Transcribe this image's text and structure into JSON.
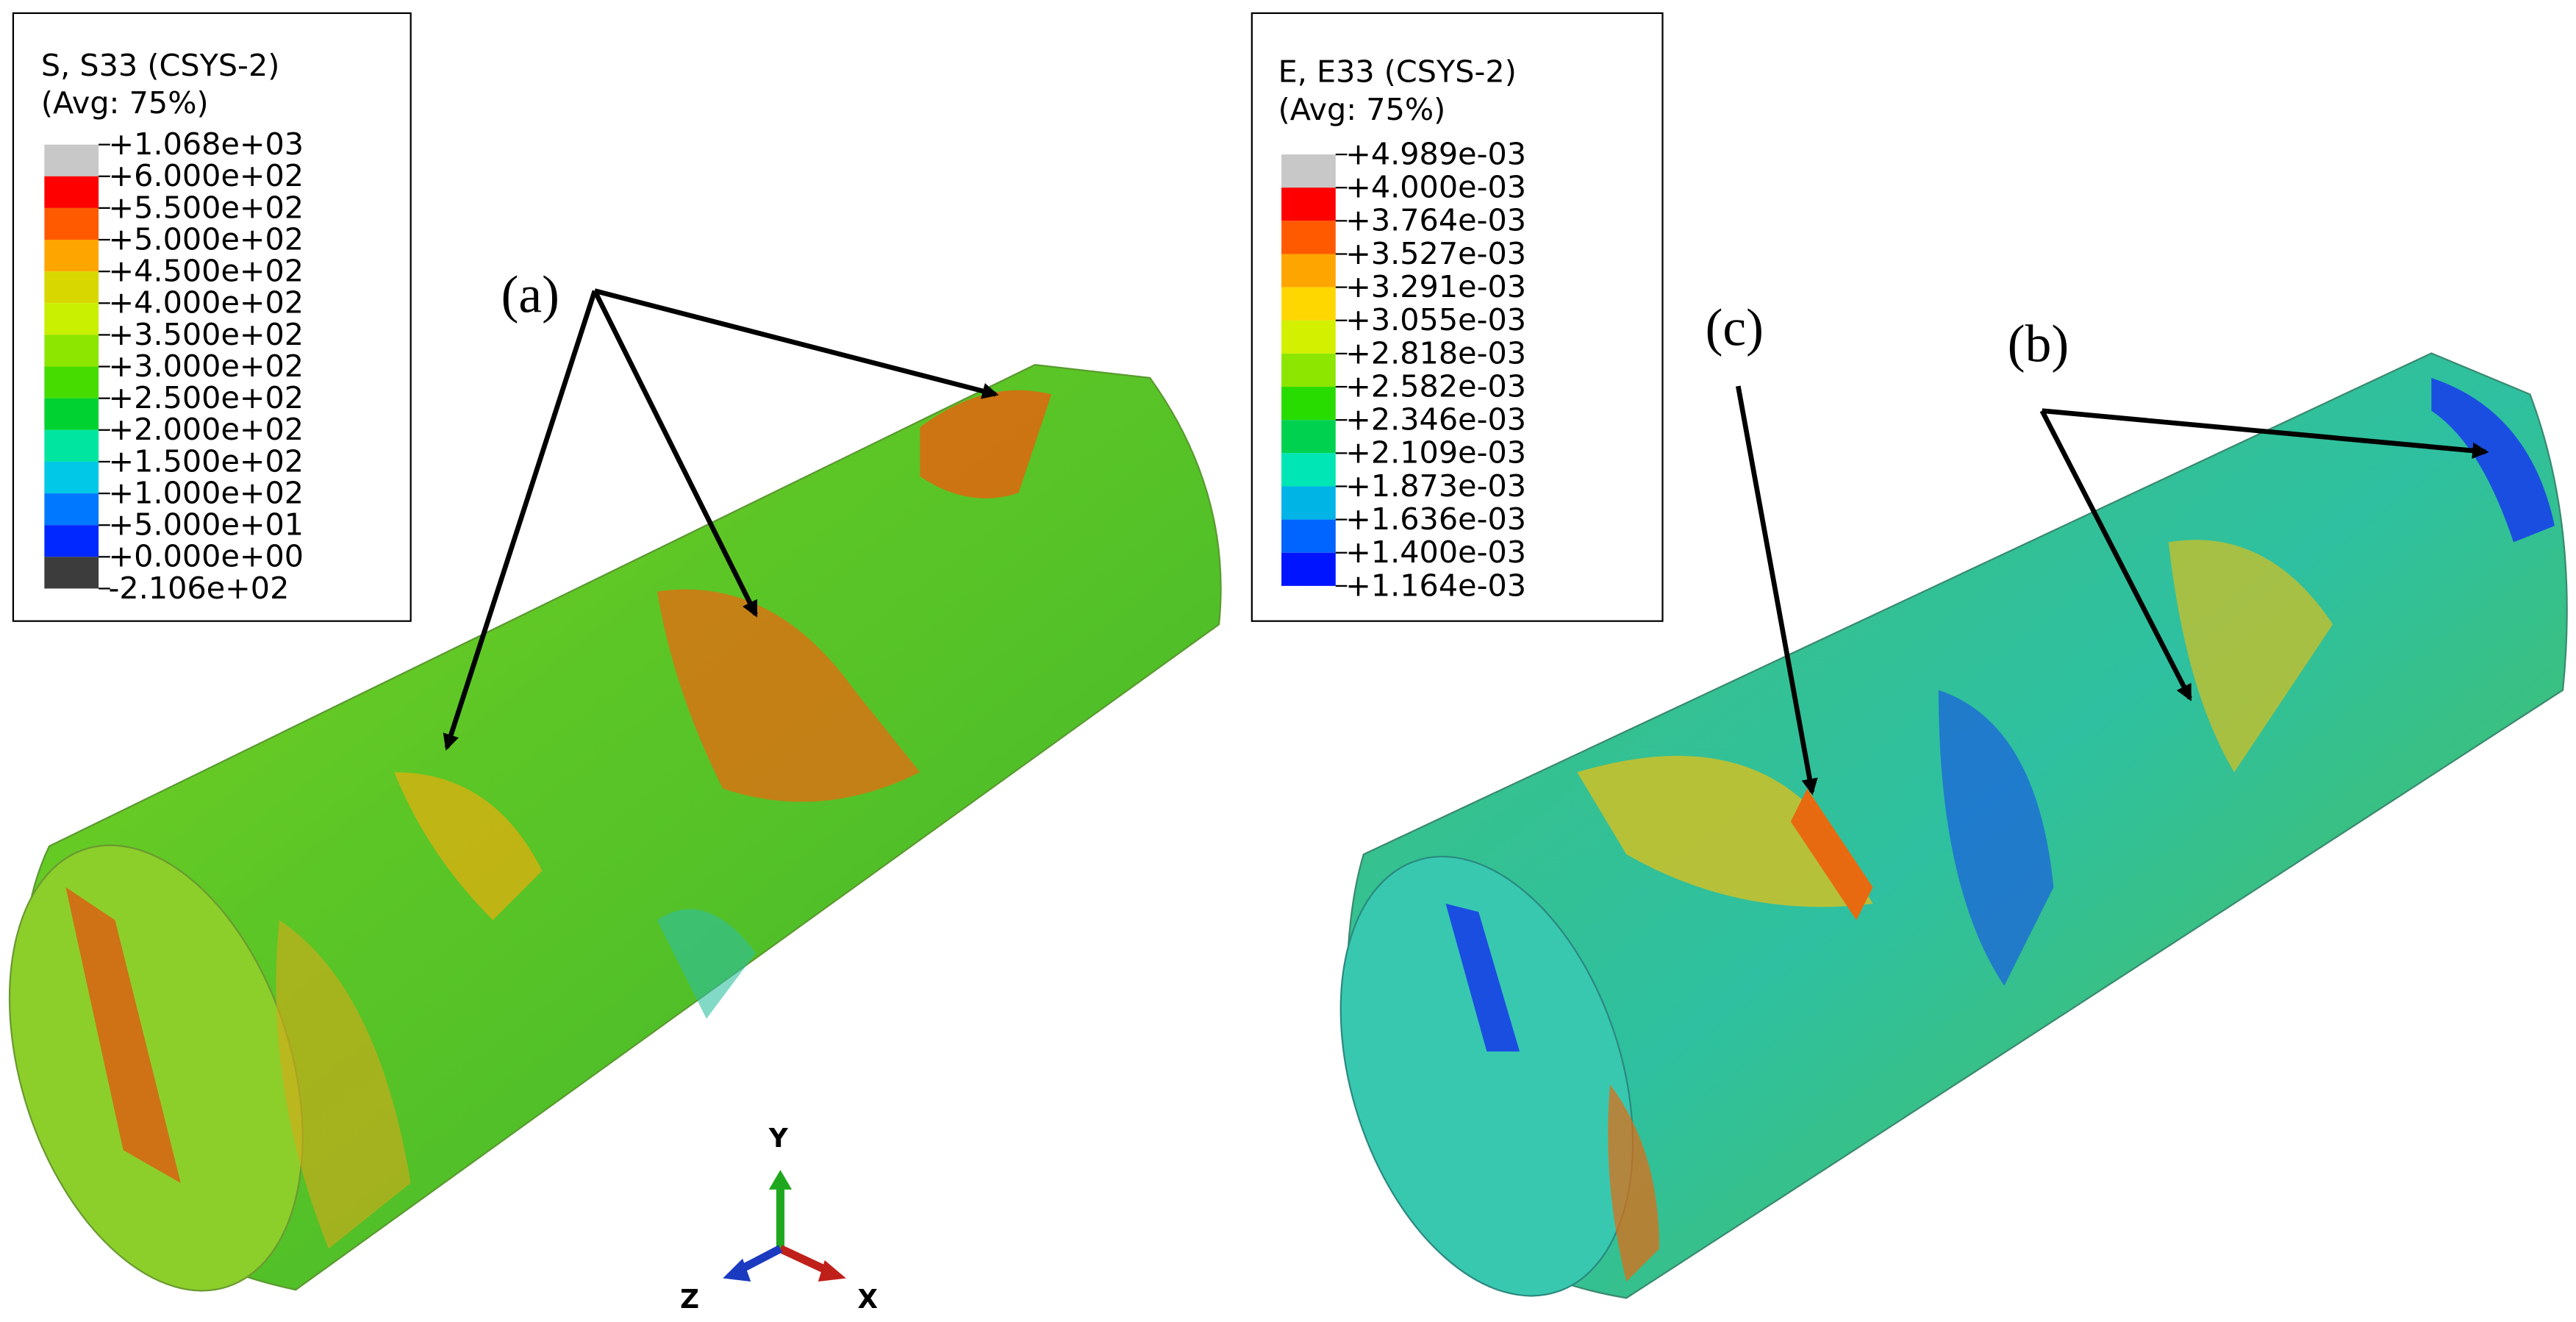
{
  "legends": [
    {
      "title": [
        "S, S33 (CSYS-2)",
        "(Avg: 75%)"
      ],
      "labels": [
        "+1.068e+03",
        "+6.000e+02",
        "+5.500e+02",
        "+5.000e+02",
        "+4.500e+02",
        "+4.000e+02",
        "+3.500e+02",
        "+3.000e+02",
        "+2.500e+02",
        "+2.000e+02",
        "+1.500e+02",
        "+1.000e+02",
        "+5.000e+01",
        "+0.000e+00",
        "-2.106e+02"
      ]
    },
    {
      "title": [
        "E, E33 (CSYS-2)",
        "(Avg: 75%)"
      ],
      "labels": [
        "+4.989e-03",
        "+4.000e-03",
        "+3.764e-03",
        "+3.527e-03",
        "+3.291e-03",
        "+3.055e-03",
        "+2.818e-03",
        "+2.582e-03",
        "+2.346e-03",
        "+2.109e-03",
        "+1.873e-03",
        "+1.636e-03",
        "+1.400e-03",
        "+1.164e-03"
      ]
    }
  ],
  "annotations": [
    "(a)",
    "(c)",
    "(b)"
  ],
  "triad": {
    "y": "Y",
    "x": "X",
    "z": "Z"
  }
}
